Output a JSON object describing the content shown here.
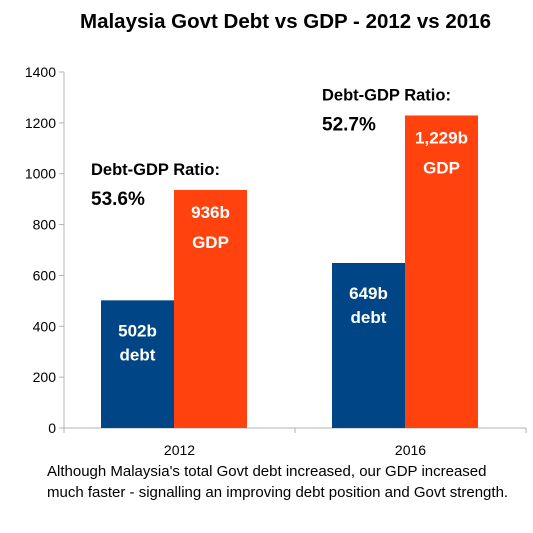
{
  "chart_data": {
    "type": "bar",
    "title": "Malaysia Govt Debt vs GDP - 2012 vs 2016",
    "categories": [
      "2012",
      "2016"
    ],
    "series": [
      {
        "name": "debt",
        "values": [
          502,
          649
        ],
        "labels": [
          "502b",
          "649b"
        ],
        "unit": "debt"
      },
      {
        "name": "GDP",
        "values": [
          936,
          1229
        ],
        "labels": [
          "936b",
          "1,229b"
        ],
        "unit": "GDP"
      }
    ],
    "colors": {
      "debt": "#004586",
      "GDP": "#ff420e"
    },
    "ylim": [
      0,
      1400
    ],
    "yticks": [
      "0",
      "200",
      "400",
      "600",
      "800",
      "1000",
      "1200",
      "1400"
    ],
    "annotations": [
      {
        "heading": "Debt-GDP Ratio:",
        "value": "53.6%"
      },
      {
        "heading": "Debt-GDP Ratio:",
        "value": "52.7%"
      }
    ],
    "grid": false,
    "legend": "none"
  },
  "caption": "Although Malaysia's total Govt debt increased, our GDP increased much faster - signalling an improving debt position and Govt strength."
}
